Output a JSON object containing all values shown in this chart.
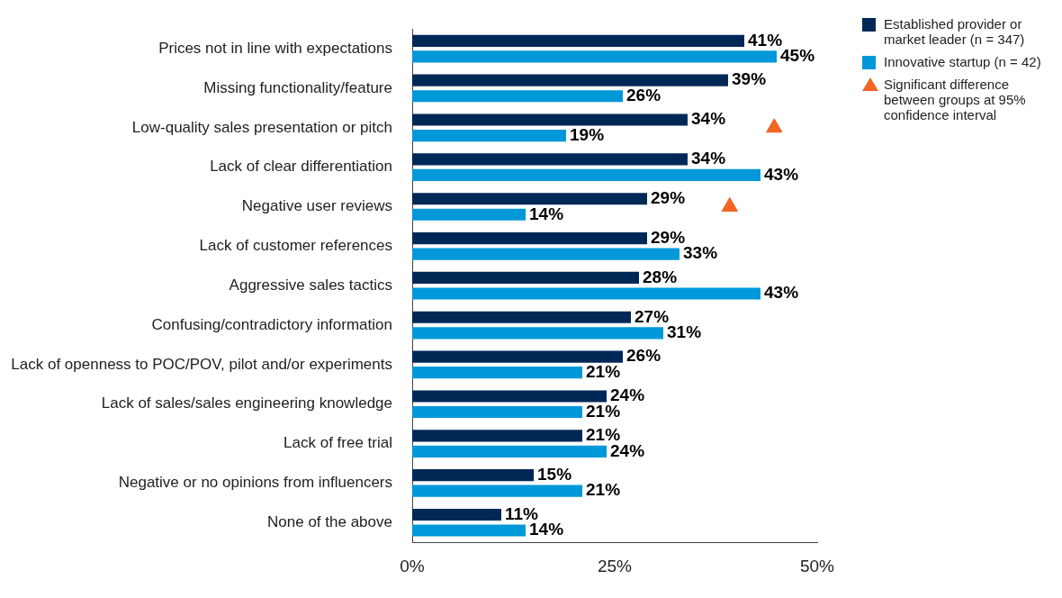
{
  "chart_data": {
    "type": "bar",
    "orientation": "horizontal",
    "categories": [
      "Prices not in line with expectations",
      "Missing functionality/feature",
      "Low-quality sales presentation or pitch",
      "Lack of clear differentiation",
      "Negative user reviews",
      "Lack of customer references",
      "Aggressive sales tactics",
      "Confusing/contradictory information",
      "Lack of openness to POC/POV, pilot and/or experiments",
      "Lack of sales/sales engineering knowledge",
      "Lack of free trial",
      "Negative or no opinions from influencers",
      "None of the above"
    ],
    "series": [
      {
        "name": "Established provider or market leader (n = 347)",
        "color": "#002856",
        "values": [
          41,
          39,
          34,
          34,
          29,
          29,
          28,
          27,
          26,
          24,
          21,
          15,
          11
        ],
        "value_labels": [
          "41%",
          "39%",
          "34%",
          "34%",
          "29%",
          "29%",
          "28%",
          "27%",
          "26%",
          "24%",
          "21%",
          "15%",
          "11%"
        ]
      },
      {
        "name": "Innovative startup (n = 42)",
        "color": "#0098d8",
        "values": [
          45,
          26,
          19,
          43,
          14,
          33,
          43,
          31,
          21,
          21,
          24,
          21,
          14
        ],
        "value_labels": [
          "45%",
          "26%",
          "19%",
          "43%",
          "14%",
          "33%",
          "43%",
          "31%",
          "21%",
          "21%",
          "24%",
          "21%",
          "14%"
        ]
      },
      {
        "type": "scatter",
        "name": "Significant difference between groups at 95% confidence interval",
        "color": "#f26522",
        "marker": "triangle",
        "x": [
          "Low-quality sales presentation or pitch",
          "Negative user reviews"
        ],
        "values": [
          44.7,
          39.2
        ]
      }
    ],
    "xlim": [
      0,
      50
    ],
    "xticks": [
      {
        "value": 0,
        "label": "0%"
      },
      {
        "value": 25,
        "label": "25%"
      },
      {
        "value": 50,
        "label": "50%"
      }
    ],
    "grid": false,
    "legend": "top right"
  }
}
